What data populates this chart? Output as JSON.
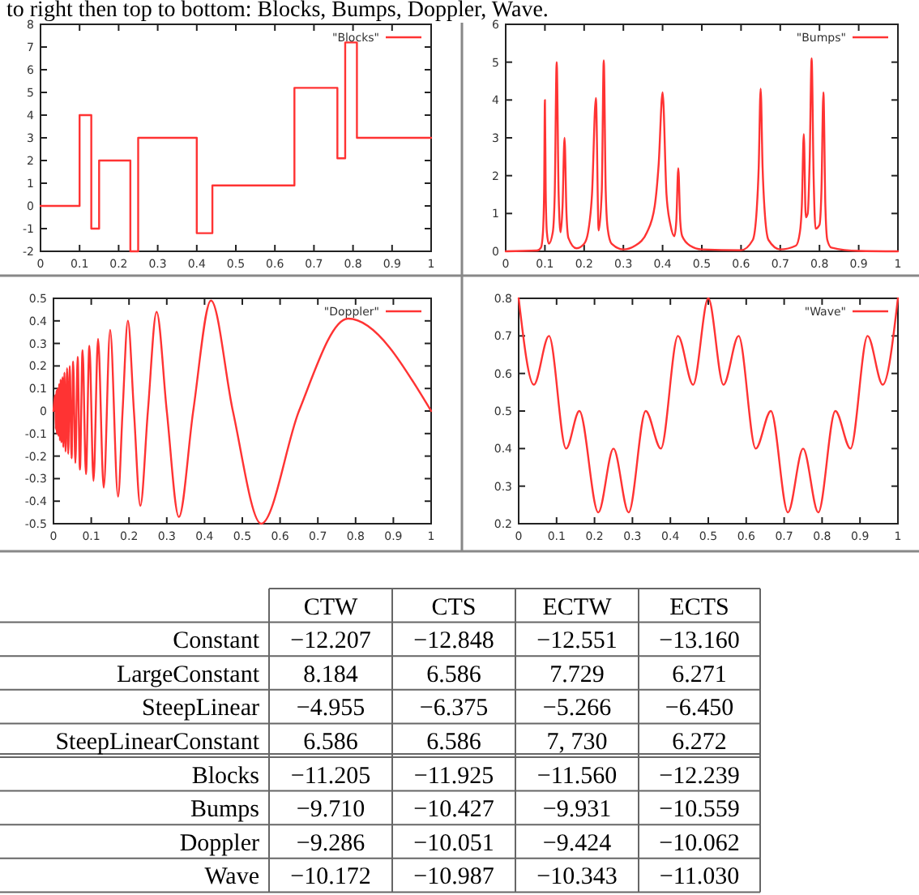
{
  "chart_data": [
    {
      "type": "other",
      "title": "to right then top to bottom: Blocks, Bumps, Doppler, Wave."
    },
    {
      "type": "step",
      "xlim": [
        0,
        1
      ],
      "ylim": [
        -2,
        8
      ],
      "xticks": [
        0,
        0.1,
        0.2,
        0.3,
        0.4,
        0.5,
        0.6,
        0.7,
        0.8,
        0.9,
        1
      ],
      "yticks": [
        -2,
        -1,
        0,
        1,
        2,
        3,
        4,
        5,
        6,
        7,
        8
      ],
      "legend": "top right",
      "series": [
        {
          "name": "\"Blocks\"",
          "color": "#ff3333",
          "x": [
            0,
            0.1,
            0.13,
            0.15,
            0.23,
            0.25,
            0.4,
            0.44,
            0.65,
            0.76,
            0.78,
            0.81,
            1
          ],
          "values": [
            0,
            4,
            -1,
            2,
            -2,
            3,
            -1.2,
            0.9,
            5.2,
            2.1,
            7.2,
            3,
            3
          ]
        }
      ]
    },
    {
      "type": "line",
      "xlim": [
        0,
        1
      ],
      "ylim": [
        0,
        6
      ],
      "xticks": [
        0,
        0.1,
        0.2,
        0.3,
        0.4,
        0.5,
        0.6,
        0.7,
        0.8,
        0.9,
        1
      ],
      "yticks": [
        0,
        1,
        2,
        3,
        4,
        5,
        6
      ],
      "legend": "top right",
      "series": [
        {
          "name": "\"Bumps\"",
          "color": "#ff3333",
          "x": [
            0,
            0.08,
            0.09,
            0.095,
            0.098,
            0.1,
            0.102,
            0.105,
            0.11,
            0.12,
            0.125,
            0.13,
            0.135,
            0.14,
            0.145,
            0.15,
            0.155,
            0.16,
            0.18,
            0.2,
            0.21,
            0.22,
            0.23,
            0.237,
            0.245,
            0.25,
            0.255,
            0.26,
            0.27,
            0.3,
            0.33,
            0.36,
            0.38,
            0.39,
            0.4,
            0.41,
            0.42,
            0.43,
            0.435,
            0.44,
            0.445,
            0.45,
            0.47,
            0.5,
            0.6,
            0.63,
            0.64,
            0.645,
            0.65,
            0.655,
            0.66,
            0.67,
            0.7,
            0.74,
            0.75,
            0.755,
            0.76,
            0.765,
            0.77,
            0.775,
            0.78,
            0.785,
            0.79,
            0.8,
            0.805,
            0.81,
            0.815,
            0.82,
            0.83,
            0.9,
            1
          ],
          "values": [
            0,
            0.02,
            0.1,
            0.5,
            1.6,
            4,
            1.6,
            0.5,
            0.2,
            0.5,
            1.5,
            5,
            1.5,
            0.5,
            1.2,
            3,
            1,
            0.35,
            0.08,
            0.2,
            0.5,
            1.5,
            4.05,
            0.55,
            1.6,
            5.05,
            1.6,
            0.6,
            0.2,
            0.05,
            0.15,
            0.5,
            1.2,
            2.3,
            4.2,
            1.5,
            0.7,
            0.4,
            0.8,
            2.2,
            0.8,
            0.4,
            0.15,
            0.05,
            0.03,
            0.3,
            1.1,
            2.2,
            4.3,
            2.2,
            1.1,
            0.3,
            0.05,
            0.15,
            0.5,
            1.2,
            3.1,
            0.9,
            1,
            2.4,
            5.1,
            2,
            0.6,
            0.7,
            1.6,
            4.2,
            1.2,
            0.3,
            0.1,
            0.01,
            0
          ]
        }
      ]
    },
    {
      "type": "line",
      "xlim": [
        0,
        1
      ],
      "ylim": [
        -0.5,
        0.5
      ],
      "xticks": [
        0,
        0.1,
        0.2,
        0.3,
        0.4,
        0.5,
        0.6,
        0.7,
        0.8,
        0.9,
        1
      ],
      "yticks": [
        -0.5,
        -0.4,
        -0.3,
        -0.2,
        -0.1,
        0,
        0.1,
        0.2,
        0.3,
        0.4,
        0.5
      ],
      "legend": "top right",
      "series": [
        {
          "name": "\"Doppler\"",
          "color": "#ff3333",
          "x": [
            0,
            0.005,
            0.006,
            0.008,
            0.009,
            0.011,
            0.013,
            0.015,
            0.017,
            0.019,
            0.021,
            0.024,
            0.026,
            0.029,
            0.032,
            0.036,
            0.039,
            0.043,
            0.048,
            0.052,
            0.058,
            0.064,
            0.07,
            0.077,
            0.086,
            0.095,
            0.106,
            0.118,
            0.133,
            0.15,
            0.171,
            0.183,
            0.197,
            0.213,
            0.23,
            0.25,
            0.273,
            0.3,
            0.332,
            0.37,
            0.417,
            0.475,
            0.55,
            0.65,
            0.78,
            1
          ],
          "values": [
            0,
            0.07,
            -0.08,
            0.09,
            -0.1,
            0.1,
            -0.11,
            0.12,
            -0.13,
            0.14,
            -0.14,
            0.15,
            -0.16,
            0.17,
            -0.18,
            0.19,
            -0.19,
            0.2,
            -0.21,
            0.22,
            -0.23,
            0.24,
            -0.26,
            0.27,
            -0.28,
            0.29,
            -0.31,
            0.32,
            -0.34,
            0.36,
            -0.38,
            0,
            0.4,
            0,
            -0.42,
            0,
            0.44,
            0,
            -0.47,
            0,
            0.49,
            0,
            -0.5,
            0,
            0.41,
            0
          ]
        }
      ]
    },
    {
      "type": "line",
      "xlim": [
        0,
        1
      ],
      "ylim": [
        0.2,
        0.8
      ],
      "xticks": [
        0,
        0.1,
        0.2,
        0.3,
        0.4,
        0.5,
        0.6,
        0.7,
        0.8,
        0.9,
        1
      ],
      "yticks": [
        0.2,
        0.3,
        0.4,
        0.5,
        0.6,
        0.7,
        0.8
      ],
      "legend": "top right",
      "series": [
        {
          "name": "\"Wave\"",
          "color": "#ff3333",
          "x": [
            0,
            0.04,
            0.08,
            0.125,
            0.16,
            0.21,
            0.25,
            0.29,
            0.335,
            0.375,
            0.42,
            0.46,
            0.5,
            0.54,
            0.58,
            0.625,
            0.665,
            0.71,
            0.75,
            0.79,
            0.835,
            0.875,
            0.92,
            0.96,
            1
          ],
          "values": [
            0.8,
            0.57,
            0.7,
            0.4,
            0.5,
            0.23,
            0.4,
            0.23,
            0.5,
            0.4,
            0.7,
            0.57,
            0.8,
            0.57,
            0.7,
            0.4,
            0.5,
            0.23,
            0.4,
            0.23,
            0.5,
            0.4,
            0.7,
            0.57,
            0.8
          ]
        }
      ]
    },
    {
      "type": "other",
      "categories": [
        "CTW",
        "CTS",
        "ECTW",
        "ECTS"
      ],
      "y_categories": [
        "Constant",
        "LargeConstant",
        "SteepLinear",
        "SteepLinearConstant",
        "Blocks",
        "Bumps",
        "Doppler",
        "Wave"
      ],
      "cell_labels": [
        [
          "−12.207",
          "−12.848",
          "−12.551",
          "−13.160"
        ],
        [
          "8.184",
          "6.586",
          "7.729",
          "6.271"
        ],
        [
          "−4.955",
          "−6.375",
          "−5.266",
          "−6.450"
        ],
        [
          "6.586",
          "6.586",
          "7, 730",
          "6.272"
        ],
        [
          "−11.205",
          "−11.925",
          "−11.560",
          "−12.239"
        ],
        [
          "−9.710",
          "−10.427",
          "−9.931",
          "−10.559"
        ],
        [
          "−9.286",
          "−10.051",
          "−9.424",
          "−10.062"
        ],
        [
          "−10.172",
          "−10.987",
          "−10.343",
          "−11.030"
        ]
      ]
    }
  ]
}
